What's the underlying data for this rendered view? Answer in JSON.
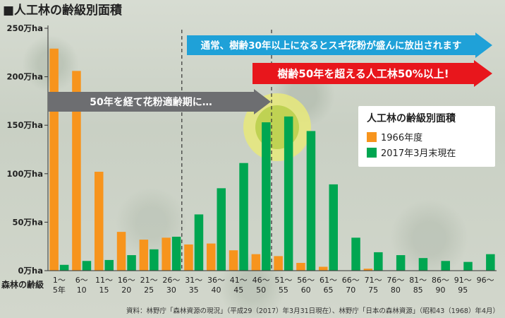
{
  "title": "■人工林の齢級別面積",
  "source": "資料：林野庁「森林資源の現況」（平成29（2017）年3月31日現在）、林野庁「日本の森林資源」（昭和43（1968）年4月）",
  "xaxis_name": "森林の齢級",
  "arrows": {
    "blue": "通常、樹齢30年以上になるとスギ花粉が盛んに放出されます",
    "red": "樹齢50年を超える人工林50%以上!",
    "gray": "50年を経て花粉適齢期に…"
  },
  "colors": {
    "orange": "#f7941d",
    "green": "#00a651",
    "blue": "#1fa1d8",
    "red": "#e8161c",
    "gray": "#6d6e71"
  },
  "chart_data": {
    "type": "bar",
    "title": "人工林の齢級別面積",
    "ylabel": "",
    "xlabel": "森林の齢級",
    "ylim": [
      0,
      250
    ],
    "yticks": [
      0,
      50,
      100,
      150,
      200,
      250
    ],
    "ytick_labels": [
      "0万ha",
      "50万ha",
      "100万ha",
      "150万ha",
      "200万ha",
      "250万ha"
    ],
    "categories": [
      [
        "1～",
        "5年"
      ],
      [
        "6～",
        "10"
      ],
      [
        "11～",
        "15"
      ],
      [
        "16～",
        "20"
      ],
      [
        "21～",
        "25"
      ],
      [
        "26～",
        "30"
      ],
      [
        "31～",
        "35"
      ],
      [
        "36～",
        "40"
      ],
      [
        "41～",
        "45"
      ],
      [
        "46～",
        "50"
      ],
      [
        "51～",
        "55"
      ],
      [
        "56～",
        "60"
      ],
      [
        "61～",
        "65"
      ],
      [
        "66～",
        "70"
      ],
      [
        "71～",
        "75"
      ],
      [
        "76～",
        "80"
      ],
      [
        "81～",
        "85"
      ],
      [
        "86～",
        "90"
      ],
      [
        "91～",
        "95"
      ],
      [
        "96～",
        ""
      ]
    ],
    "series": [
      {
        "name": "1966年度",
        "color": "#f7941d",
        "values": [
          229,
          206,
          102,
          40,
          32,
          34,
          27,
          28,
          21,
          17,
          15,
          8,
          4,
          0,
          2,
          0,
          0,
          0,
          0,
          0
        ]
      },
      {
        "name": "2017年3月末現在",
        "color": "#00a651",
        "values": [
          6,
          10,
          11,
          16,
          22,
          35,
          58,
          85,
          111,
          153,
          159,
          144,
          89,
          34,
          19,
          16,
          13,
          10,
          9,
          17
        ]
      }
    ],
    "legend_title": "人工林の齢級別面積",
    "legend_position": "right",
    "grid": false
  }
}
